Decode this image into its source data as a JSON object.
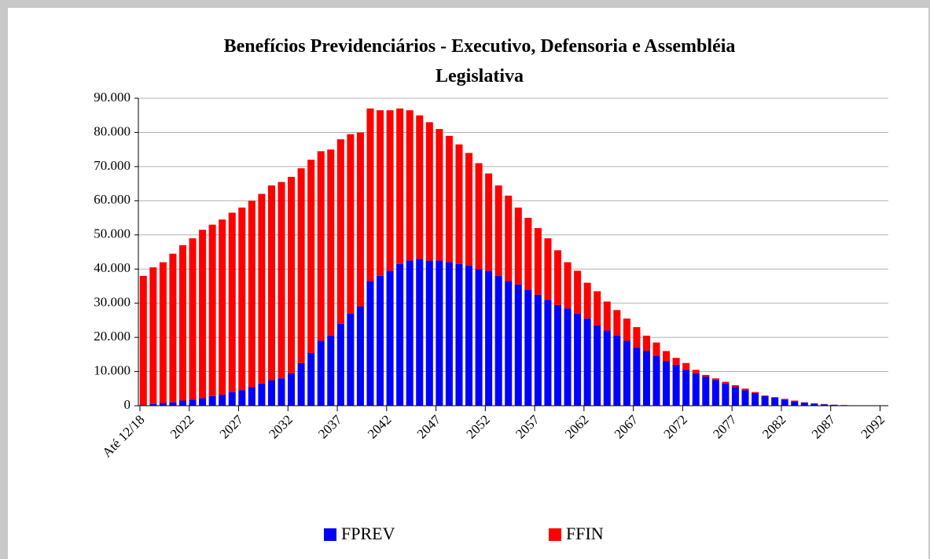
{
  "chart_data": {
    "type": "stacked_bar",
    "title": "Benefícios Previdenciários - Executivo, Defensoria  e Assembléia Legislativa",
    "title_lines": [
      "Benefícios Previdenciários - Executivo, Defensoria  e Assembléia",
      "Legislativa"
    ],
    "categories": [
      "Até 12/18",
      null,
      null,
      null,
      null,
      "2022",
      null,
      null,
      null,
      null,
      "2027",
      null,
      null,
      null,
      null,
      "2032",
      null,
      null,
      null,
      null,
      "2037",
      null,
      null,
      null,
      null,
      "2042",
      null,
      null,
      null,
      null,
      "2047",
      null,
      null,
      null,
      null,
      "2052",
      null,
      null,
      null,
      null,
      "2057",
      null,
      null,
      null,
      null,
      "2062",
      null,
      null,
      null,
      null,
      "2067",
      null,
      null,
      null,
      null,
      "2072",
      null,
      null,
      null,
      null,
      "2077",
      null,
      null,
      null,
      null,
      "2082",
      null,
      null,
      null,
      null,
      "2087",
      null,
      null,
      null,
      null,
      "2092"
    ],
    "series": [
      {
        "name": "FPREV",
        "color": "#0000ff",
        "values": [
          200,
          500,
          800,
          1000,
          1500,
          1800,
          2200,
          2800,
          3200,
          4000,
          4500,
          5500,
          6500,
          7500,
          8000,
          9500,
          12500,
          15500,
          19000,
          20500,
          24000,
          27000,
          29000,
          36500,
          38000,
          39500,
          41500,
          42500,
          43000,
          42500,
          42500,
          42000,
          41500,
          41000,
          40000,
          39500,
          38000,
          36500,
          35500,
          34000,
          32500,
          31000,
          29500,
          28500,
          27000,
          25500,
          23500,
          22000,
          20500,
          19000,
          17000,
          16000,
          14500,
          13000,
          12000,
          10500,
          9500,
          8500,
          7500,
          6500,
          5500,
          4500,
          3700,
          2800,
          2300,
          1800,
          1300,
          900,
          600,
          400,
          250,
          150,
          80,
          50,
          20,
          0
        ]
      },
      {
        "name": "FFIN",
        "color": "#ff0000",
        "values": [
          37800,
          40000,
          41200,
          43500,
          45500,
          47200,
          49300,
          50200,
          51300,
          52500,
          53500,
          54500,
          55500,
          57000,
          57500,
          57500,
          57000,
          56500,
          55500,
          54500,
          54000,
          52500,
          51000,
          50500,
          48500,
          47000,
          45500,
          44000,
          42000,
          40500,
          38500,
          37000,
          35000,
          33000,
          31000,
          28500,
          26500,
          25000,
          22500,
          21000,
          19500,
          18000,
          16000,
          13500,
          12500,
          10500,
          10000,
          8500,
          7500,
          6500,
          6000,
          4500,
          4000,
          3000,
          2000,
          2000,
          1000,
          500,
          500,
          500,
          500,
          500,
          300,
          200,
          200,
          200,
          200,
          100,
          100,
          100,
          50,
          50,
          20,
          50,
          30,
          0
        ]
      }
    ],
    "ylim": [
      0,
      90000
    ],
    "yticks": [
      0,
      {
        "value": 10000,
        "label": "10.000"
      },
      {
        "value": 20000,
        "label": "20.000"
      },
      {
        "value": 30000,
        "label": "30.000"
      },
      {
        "value": 40000,
        "label": "40.000"
      },
      {
        "value": 50000,
        "label": "50.000"
      },
      {
        "value": 60000,
        "label": "60.000"
      },
      {
        "value": 70000,
        "label": "70.000"
      },
      {
        "value": 80000,
        "label": "80.000"
      },
      {
        "value": 90000,
        "label": "90.000"
      }
    ],
    "grid": true,
    "legend": "bottom"
  }
}
